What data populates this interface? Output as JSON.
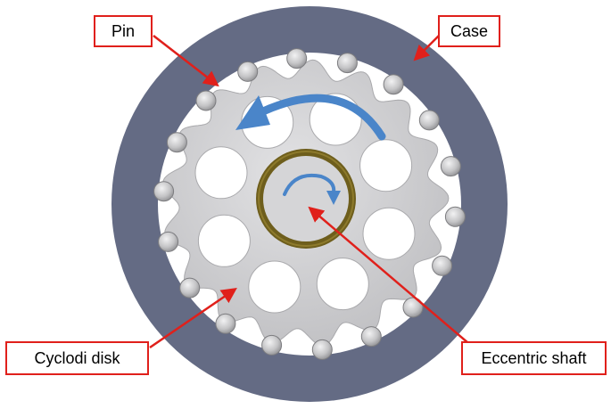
{
  "labels": {
    "pin": "Pin",
    "case": "Case",
    "cycloid_disk": "Cyclodi disk",
    "eccentric_shaft": "Eccentric shaft"
  },
  "parts": {
    "pin_count": 18,
    "disk_lobes": 17,
    "disk_holes": 8
  },
  "colors": {
    "case": "#646b84",
    "disk": "#c7c7c9",
    "pin": "#b5b5b7",
    "shaft_ring": "#6e5e1c",
    "shaft_center": "#d5d5d7",
    "arrow_blue": "#4a85c9",
    "label_border": "#e0201b"
  },
  "rotation": {
    "disk_direction": "counterclockwise",
    "shaft_direction": "clockwise"
  }
}
